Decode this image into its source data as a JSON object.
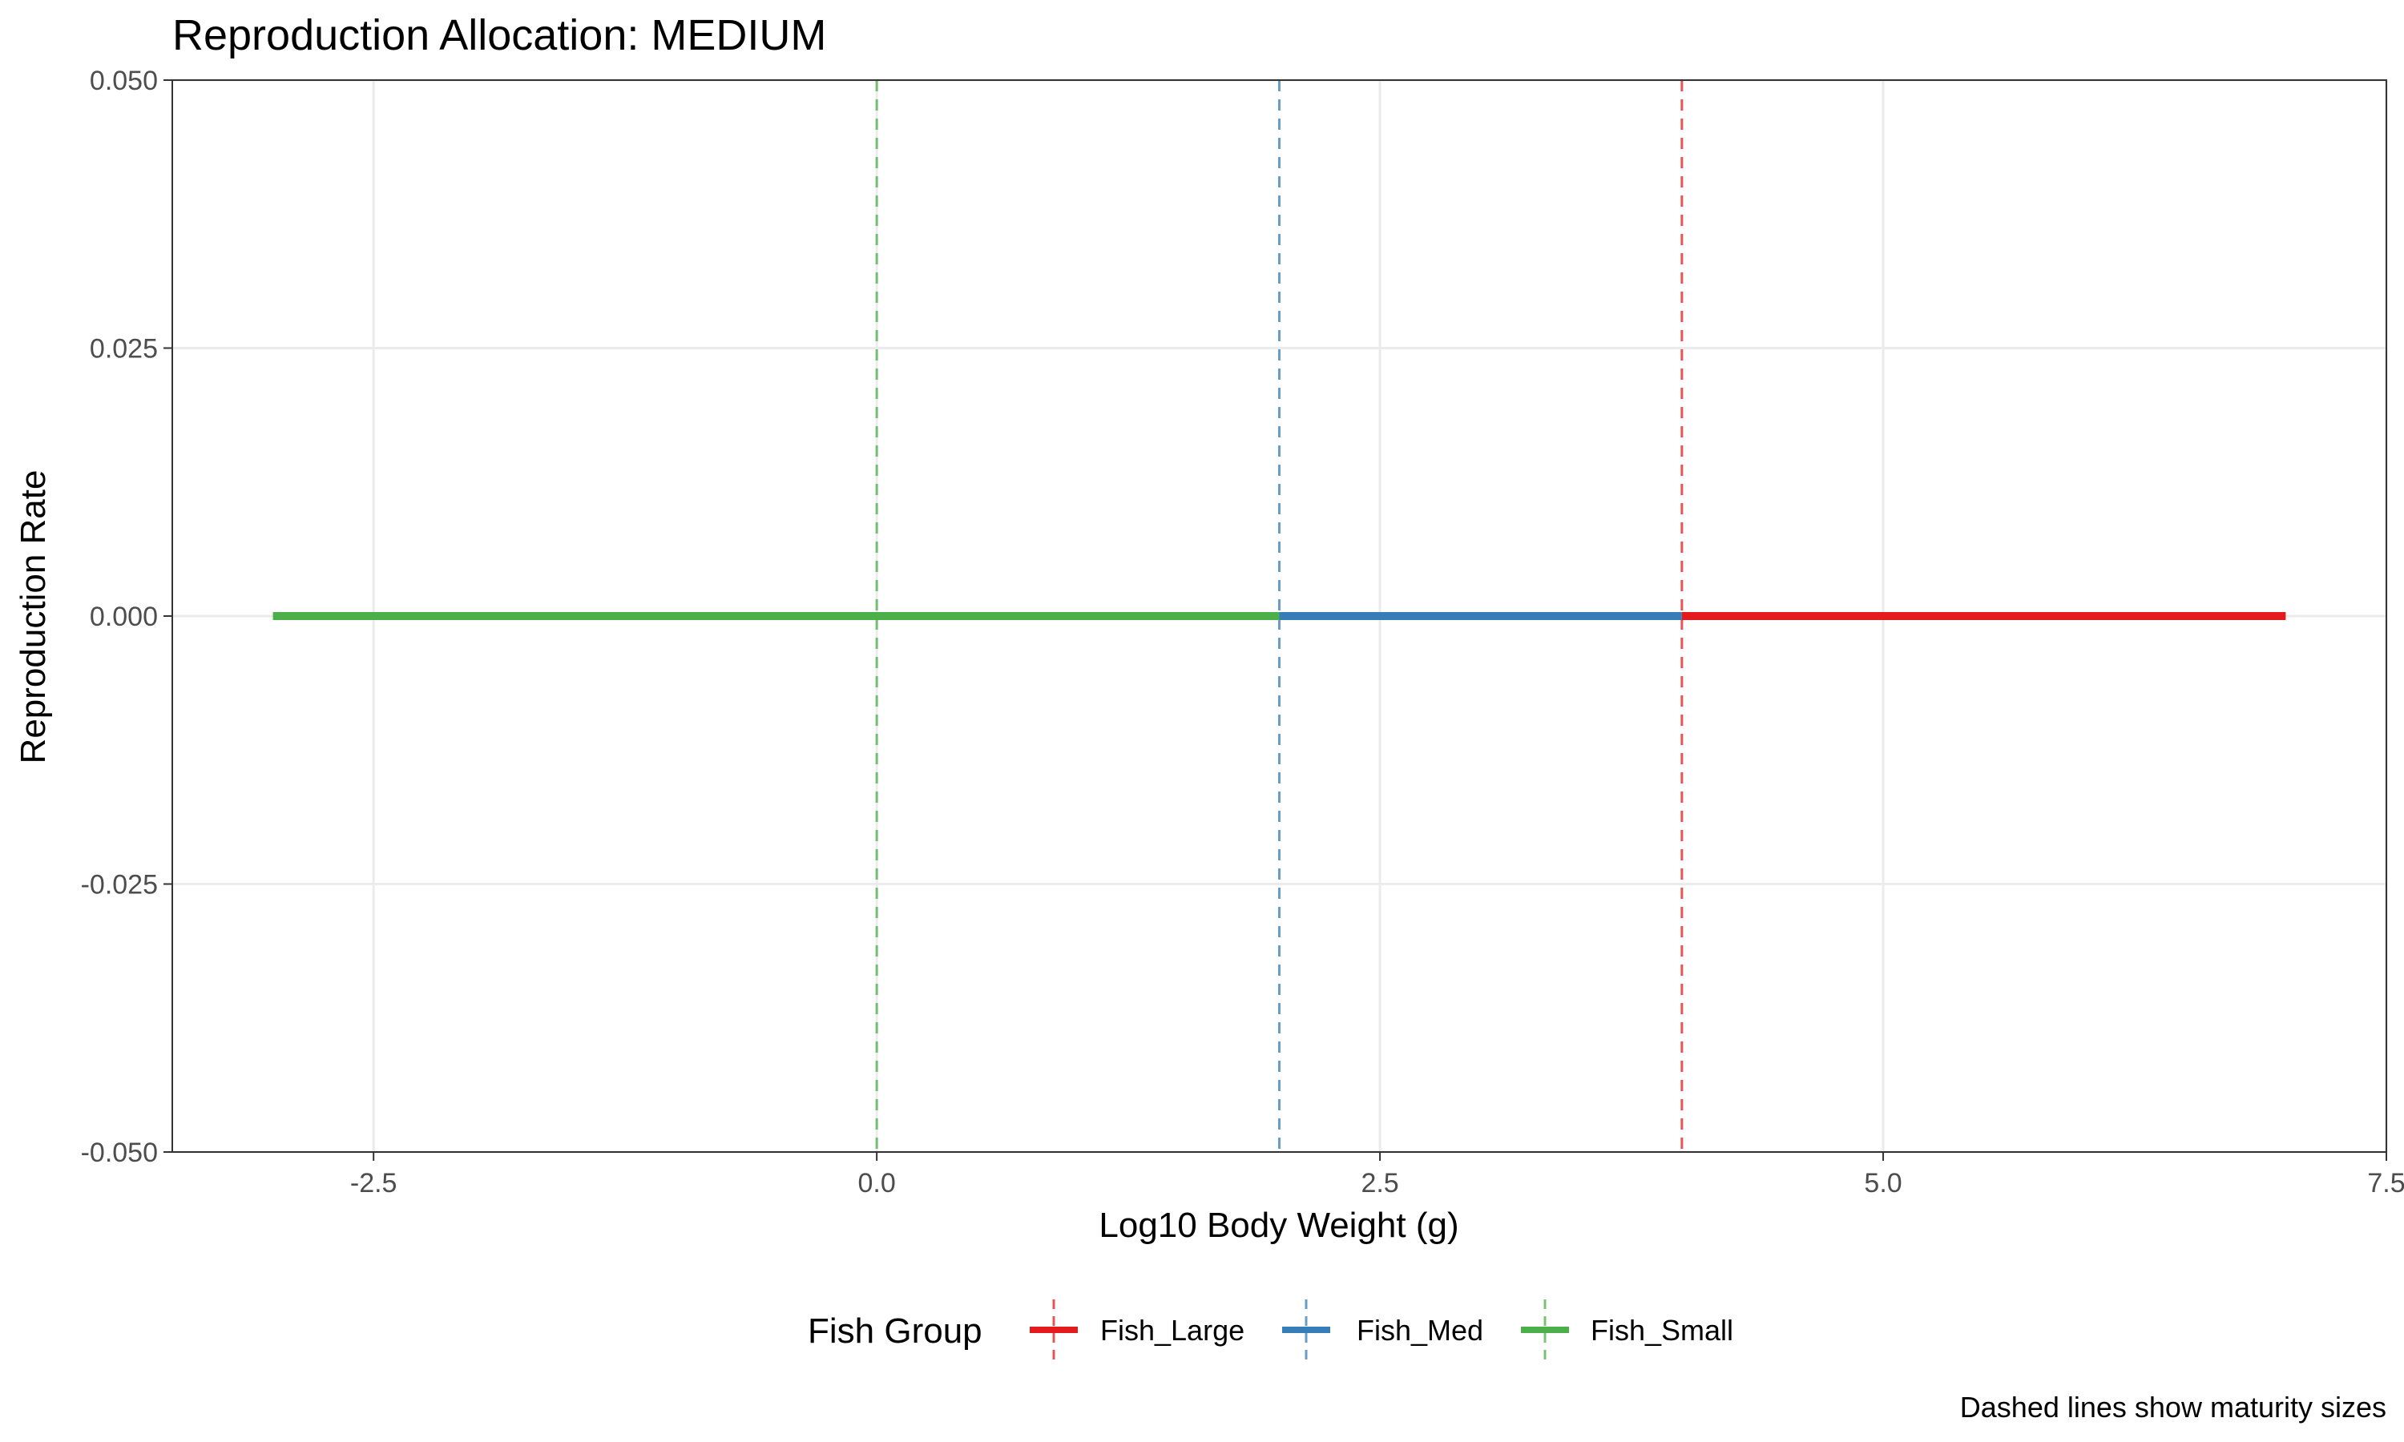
{
  "chart_data": {
    "type": "line",
    "title": "Reproduction Allocation: MEDIUM",
    "xlabel": "Log10 Body Weight (g)",
    "ylabel": "Reproduction Rate",
    "xlim": [
      -3.5,
      7.5
    ],
    "ylim": [
      -0.05,
      0.05
    ],
    "x_ticks": [
      -2.5,
      0.0,
      2.5,
      5.0,
      7.5
    ],
    "x_tick_labels": [
      "-2.5",
      "0.0",
      "2.5",
      "5.0",
      "7.5"
    ],
    "y_ticks": [
      -0.05,
      -0.025,
      0.0,
      0.025,
      0.05
    ],
    "y_tick_labels": [
      "-0.050",
      "-0.025",
      "0.000",
      "0.025",
      "0.050"
    ],
    "grid": true,
    "legend_title": "Fish Group",
    "legend_position": "bottom",
    "caption": "Dashed lines show maturity sizes",
    "series": [
      {
        "name": "Fish_Large",
        "color": "#e41a1c",
        "x": [
          4.0,
          7.0
        ],
        "y": [
          0.0,
          0.0
        ],
        "maturity": 4.0
      },
      {
        "name": "Fish_Med",
        "color": "#377eb8",
        "x": [
          2.0,
          4.0
        ],
        "y": [
          0.0,
          0.0
        ],
        "maturity": 2.0
      },
      {
        "name": "Fish_Small",
        "color": "#4daf4a",
        "x": [
          -3.0,
          2.0
        ],
        "y": [
          0.0,
          0.0
        ],
        "maturity": 0.0
      }
    ]
  }
}
